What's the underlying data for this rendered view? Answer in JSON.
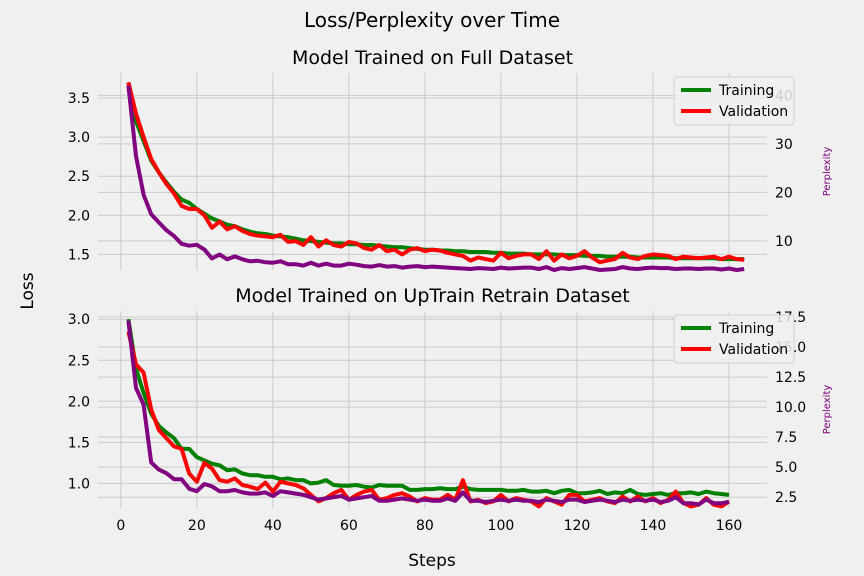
{
  "suptitle": "Loss/Perplexity over Time",
  "xlabel": "Steps",
  "ylabel": "Loss",
  "colors": {
    "training": "#008000",
    "validation": "#ff0000",
    "perplexity": "#800080",
    "perplexity_label": "#800080",
    "background": "#f0f0f0",
    "grid": "#cbcbcb"
  },
  "chart_data": [
    {
      "type": "line",
      "title": "Model Trained on Full Dataset",
      "ylabel": "",
      "y2label": "Perplexity",
      "xlim": [
        -6,
        170
      ],
      "ylim": [
        1.3,
        3.82
      ],
      "y2lim": [
        4.0,
        44.6
      ],
      "xticks": [],
      "yticks": [
        1.5,
        2.0,
        2.5,
        3.0,
        3.5
      ],
      "y2ticks": [
        10,
        20,
        30,
        40
      ],
      "grid": true,
      "legend": "top-right",
      "x": [
        2,
        4,
        6,
        8,
        10,
        12,
        14,
        16,
        18,
        20,
        22,
        24,
        26,
        28,
        30,
        32,
        34,
        36,
        38,
        40,
        42,
        44,
        46,
        48,
        50,
        52,
        54,
        56,
        58,
        60,
        62,
        64,
        66,
        68,
        70,
        72,
        74,
        76,
        78,
        80,
        82,
        84,
        86,
        88,
        90,
        92,
        94,
        96,
        98,
        100,
        102,
        104,
        106,
        108,
        110,
        112,
        114,
        116,
        118,
        120,
        122,
        124,
        126,
        128,
        130,
        132,
        134,
        136,
        138,
        140,
        142,
        144,
        146,
        148,
        150,
        152,
        154,
        156,
        158,
        160,
        162,
        164
      ],
      "series": [
        {
          "name": "Training",
          "axis": "left",
          "color": "training",
          "values": [
            3.7,
            3.2,
            2.95,
            2.7,
            2.55,
            2.42,
            2.3,
            2.2,
            2.16,
            2.08,
            2.02,
            1.96,
            1.92,
            1.88,
            1.86,
            1.82,
            1.79,
            1.77,
            1.76,
            1.74,
            1.73,
            1.72,
            1.7,
            1.68,
            1.67,
            1.66,
            1.65,
            1.64,
            1.64,
            1.63,
            1.63,
            1.62,
            1.62,
            1.61,
            1.6,
            1.59,
            1.59,
            1.58,
            1.57,
            1.56,
            1.56,
            1.55,
            1.55,
            1.54,
            1.54,
            1.53,
            1.53,
            1.53,
            1.52,
            1.52,
            1.51,
            1.51,
            1.51,
            1.5,
            1.5,
            1.5,
            1.5,
            1.49,
            1.49,
            1.49,
            1.48,
            1.48,
            1.48,
            1.47,
            1.47,
            1.47,
            1.47,
            1.46,
            1.46,
            1.46,
            1.46,
            1.46,
            1.45,
            1.45,
            1.45,
            1.45,
            1.45,
            1.45,
            1.44,
            1.44,
            1.44,
            1.44
          ]
        },
        {
          "name": "Validation",
          "axis": "left",
          "color": "validation",
          "values": [
            3.7,
            3.3,
            3.0,
            2.72,
            2.55,
            2.4,
            2.28,
            2.12,
            2.08,
            2.08,
            2.0,
            1.84,
            1.92,
            1.82,
            1.86,
            1.8,
            1.76,
            1.74,
            1.73,
            1.72,
            1.75,
            1.66,
            1.67,
            1.62,
            1.72,
            1.6,
            1.68,
            1.62,
            1.6,
            1.66,
            1.64,
            1.58,
            1.56,
            1.62,
            1.54,
            1.56,
            1.5,
            1.56,
            1.58,
            1.54,
            1.56,
            1.55,
            1.52,
            1.5,
            1.48,
            1.42,
            1.46,
            1.44,
            1.42,
            1.52,
            1.45,
            1.48,
            1.5,
            1.5,
            1.44,
            1.54,
            1.42,
            1.5,
            1.45,
            1.48,
            1.54,
            1.46,
            1.4,
            1.42,
            1.44,
            1.52,
            1.46,
            1.44,
            1.48,
            1.5,
            1.49,
            1.48,
            1.44,
            1.47,
            1.46,
            1.45,
            1.46,
            1.47,
            1.44,
            1.47,
            1.44,
            1.43
          ]
        },
        {
          "name": "",
          "axis": "right",
          "color": "perplexity",
          "values": [
            42.0,
            27.5,
            19.5,
            15.5,
            13.8,
            12.2,
            11.0,
            9.4,
            9.0,
            9.2,
            8.2,
            6.4,
            7.2,
            6.2,
            6.8,
            6.2,
            5.8,
            5.9,
            5.6,
            5.5,
            5.8,
            5.2,
            5.2,
            4.9,
            5.5,
            4.9,
            5.3,
            4.9,
            4.9,
            5.3,
            5.1,
            4.8,
            4.7,
            5.0,
            4.7,
            4.8,
            4.5,
            4.7,
            4.8,
            4.6,
            4.7,
            4.6,
            4.5,
            4.4,
            4.3,
            4.2,
            4.4,
            4.3,
            4.2,
            4.5,
            4.3,
            4.4,
            4.5,
            4.5,
            4.2,
            4.6,
            4.0,
            4.4,
            4.2,
            4.4,
            4.6,
            4.3,
            4.0,
            4.1,
            4.2,
            4.6,
            4.3,
            4.2,
            4.4,
            4.5,
            4.4,
            4.4,
            4.2,
            4.3,
            4.3,
            4.2,
            4.3,
            4.3,
            4.1,
            4.3,
            4.0,
            4.2
          ]
        }
      ]
    },
    {
      "type": "line",
      "title": "Model Trained on UpTrain Retrain Dataset",
      "ylabel": "",
      "y2label": "Perplexity",
      "xlim": [
        -6,
        170
      ],
      "ylim": [
        0.7,
        3.1
      ],
      "y2lim": [
        1.6,
        18.0
      ],
      "xticks": [
        0,
        20,
        40,
        60,
        80,
        100,
        120,
        140,
        160
      ],
      "yticks": [
        1.0,
        1.5,
        2.0,
        2.5,
        3.0
      ],
      "y2ticks": [
        2.5,
        5.0,
        7.5,
        10.0,
        12.5,
        15.0,
        17.5
      ],
      "y2tick_labels": [
        "2.5",
        "5.0",
        "7.5",
        "10.0",
        "12.5",
        "15.0",
        "17.5"
      ],
      "grid": true,
      "legend": "top-right",
      "x": [
        2,
        4,
        6,
        8,
        10,
        12,
        14,
        16,
        18,
        20,
        22,
        24,
        26,
        28,
        30,
        32,
        34,
        36,
        38,
        40,
        42,
        44,
        46,
        48,
        50,
        52,
        54,
        56,
        58,
        60,
        62,
        64,
        66,
        68,
        70,
        72,
        74,
        76,
        78,
        80,
        82,
        84,
        86,
        88,
        90,
        92,
        94,
        96,
        98,
        100,
        102,
        104,
        106,
        108,
        110,
        112,
        114,
        116,
        118,
        120,
        122,
        124,
        126,
        128,
        130,
        132,
        134,
        136,
        138,
        140,
        142,
        144,
        146,
        148,
        150,
        152,
        154,
        156,
        158,
        160
      ],
      "series": [
        {
          "name": "Training",
          "axis": "left",
          "color": "training",
          "values": [
            3.0,
            2.4,
            2.1,
            1.85,
            1.7,
            1.62,
            1.55,
            1.42,
            1.42,
            1.32,
            1.28,
            1.24,
            1.22,
            1.16,
            1.17,
            1.12,
            1.1,
            1.1,
            1.08,
            1.08,
            1.05,
            1.06,
            1.04,
            1.04,
            1.0,
            1.01,
            1.04,
            0.98,
            0.97,
            0.97,
            0.98,
            0.96,
            0.95,
            0.98,
            0.97,
            0.97,
            0.97,
            0.92,
            0.92,
            0.93,
            0.93,
            0.94,
            0.93,
            0.93,
            0.96,
            0.93,
            0.92,
            0.92,
            0.92,
            0.92,
            0.91,
            0.91,
            0.92,
            0.9,
            0.9,
            0.91,
            0.88,
            0.91,
            0.92,
            0.88,
            0.88,
            0.89,
            0.91,
            0.87,
            0.89,
            0.88,
            0.92,
            0.87,
            0.86,
            0.87,
            0.88,
            0.86,
            0.88,
            0.88,
            0.89,
            0.87,
            0.9,
            0.88,
            0.87,
            0.86
          ]
        },
        {
          "name": "Validation",
          "axis": "left",
          "color": "validation",
          "values": [
            2.85,
            2.45,
            2.35,
            1.9,
            1.65,
            1.55,
            1.45,
            1.42,
            1.12,
            1.02,
            1.25,
            1.18,
            1.04,
            1.02,
            1.06,
            0.98,
            0.96,
            0.93,
            1.01,
            0.9,
            1.02,
            1.0,
            0.98,
            0.94,
            0.86,
            0.78,
            0.82,
            0.88,
            0.92,
            0.8,
            0.86,
            0.9,
            0.92,
            0.8,
            0.82,
            0.86,
            0.88,
            0.84,
            0.78,
            0.82,
            0.8,
            0.8,
            0.86,
            0.8,
            1.04,
            0.78,
            0.8,
            0.76,
            0.78,
            0.86,
            0.78,
            0.82,
            0.8,
            0.78,
            0.72,
            0.82,
            0.78,
            0.74,
            0.86,
            0.86,
            0.78,
            0.8,
            0.82,
            0.78,
            0.76,
            0.84,
            0.78,
            0.84,
            0.78,
            0.82,
            0.76,
            0.8,
            0.9,
            0.76,
            0.72,
            0.74,
            0.82,
            0.74,
            0.72,
            0.78
          ]
        },
        {
          "name": "",
          "axis": "right",
          "color": "perplexity",
          "values": [
            17.2,
            11.6,
            10.2,
            5.4,
            4.8,
            4.5,
            4.0,
            4.0,
            3.2,
            3.0,
            3.6,
            3.4,
            3.0,
            3.0,
            3.1,
            2.9,
            2.8,
            2.8,
            2.9,
            2.6,
            3.0,
            2.9,
            2.8,
            2.7,
            2.5,
            2.3,
            2.4,
            2.5,
            2.6,
            2.3,
            2.4,
            2.5,
            2.6,
            2.2,
            2.2,
            2.3,
            2.4,
            2.3,
            2.2,
            2.3,
            2.2,
            2.2,
            2.4,
            2.2,
            2.9,
            2.2,
            2.2,
            2.1,
            2.2,
            2.3,
            2.2,
            2.3,
            2.2,
            2.2,
            2.1,
            2.3,
            2.2,
            2.1,
            2.3,
            2.3,
            2.1,
            2.2,
            2.3,
            2.2,
            2.1,
            2.3,
            2.2,
            2.3,
            2.2,
            2.3,
            2.1,
            2.2,
            2.5,
            2.0,
            2.0,
            1.9,
            2.3,
            2.0,
            2.0,
            2.1
          ]
        }
      ]
    }
  ]
}
